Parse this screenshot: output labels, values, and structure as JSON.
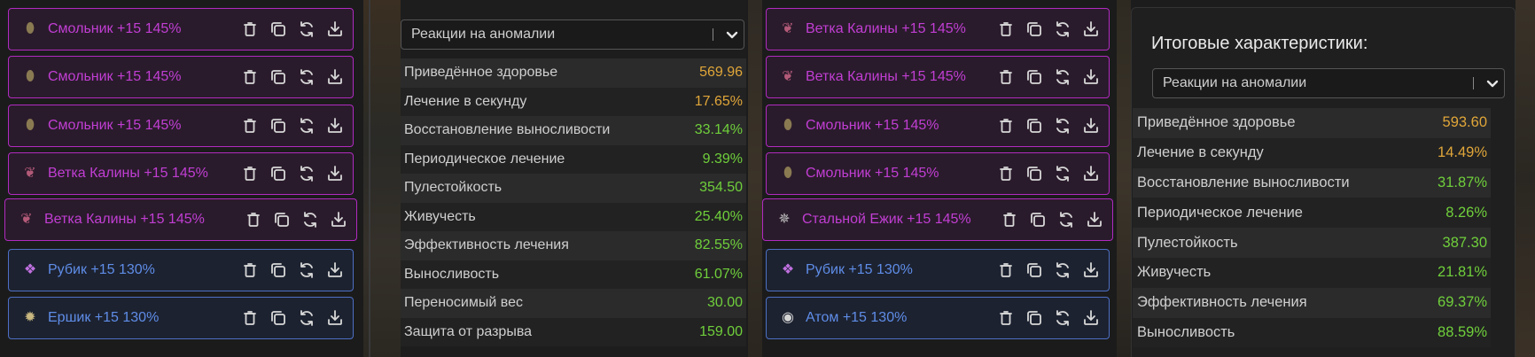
{
  "colors": {
    "legend_border": "#b12ac0",
    "legend_text": "#c13ed3",
    "epic_border": "#4d6fc4",
    "epic_text": "#5f8de8",
    "value_gold": "#e0a639",
    "value_green": "#6fcf3b"
  },
  "left_artifacts": [
    {
      "name": "Смольник +15 145%",
      "rarity": "legend",
      "icon": "resin-artifact-icon"
    },
    {
      "name": "Смольник +15 145%",
      "rarity": "legend",
      "icon": "resin-artifact-icon"
    },
    {
      "name": "Смольник +15 145%",
      "rarity": "legend",
      "icon": "resin-artifact-icon"
    },
    {
      "name": "Ветка Калины +15 145%",
      "rarity": "legend",
      "icon": "viburnum-branch-icon"
    },
    {
      "name": "Ветка Калины +15 145%",
      "rarity": "legend",
      "icon": "viburnum-branch-icon"
    },
    {
      "name": "Рубик +15 130%",
      "rarity": "epic",
      "icon": "cube-artifact-icon"
    },
    {
      "name": "Ершик +15 130%",
      "rarity": "epic",
      "icon": "urchin-artifact-icon"
    }
  ],
  "right_artifacts": [
    {
      "name": "Ветка Калины +15 145%",
      "rarity": "legend",
      "icon": "viburnum-branch-icon"
    },
    {
      "name": "Ветка Калины +15 145%",
      "rarity": "legend",
      "icon": "viburnum-branch-icon"
    },
    {
      "name": "Смольник +15 145%",
      "rarity": "legend",
      "icon": "resin-artifact-icon"
    },
    {
      "name": "Смольник +15 145%",
      "rarity": "legend",
      "icon": "resin-artifact-icon"
    },
    {
      "name": "Стальной Ежик +15 145%",
      "rarity": "legend",
      "icon": "steel-hedgehog-icon"
    },
    {
      "name": "Рубик +15 130%",
      "rarity": "epic",
      "icon": "cube-artifact-icon"
    },
    {
      "name": "Атом +15 130%",
      "rarity": "epic",
      "icon": "atom-artifact-icon"
    }
  ],
  "middle_panel": {
    "select_value": "Реакции на аномалии",
    "stats": [
      {
        "label": "Приведённое здоровье",
        "value": "569.96",
        "color": "gold"
      },
      {
        "label": "Лечение в секунду",
        "value": "17.65%",
        "color": "gold"
      },
      {
        "label": "Восстановление выносливости",
        "value": "33.14%",
        "color": "green"
      },
      {
        "label": "Периодическое лечение",
        "value": "9.39%",
        "color": "green"
      },
      {
        "label": "Пулестойкость",
        "value": "354.50",
        "color": "green"
      },
      {
        "label": "Живучесть",
        "value": "25.40%",
        "color": "green"
      },
      {
        "label": "Эффективность лечения",
        "value": "82.55%",
        "color": "green"
      },
      {
        "label": "Выносливость",
        "value": "61.07%",
        "color": "green"
      },
      {
        "label": "Переносимый вес",
        "value": "30.00",
        "color": "green"
      },
      {
        "label": "Защита от разрыва",
        "value": "159.00",
        "color": "green"
      }
    ]
  },
  "summary_panel": {
    "title": "Итоговые характеристики:",
    "select_value": "Реакции на аномалии",
    "stats": [
      {
        "label": "Приведённое здоровье",
        "value": "593.60",
        "color": "gold"
      },
      {
        "label": "Лечение в секунду",
        "value": "14.49%",
        "color": "gold"
      },
      {
        "label": "Восстановление выносливости",
        "value": "31.87%",
        "color": "green"
      },
      {
        "label": "Периодическое лечение",
        "value": "8.26%",
        "color": "green"
      },
      {
        "label": "Пулестойкость",
        "value": "387.30",
        "color": "green"
      },
      {
        "label": "Живучесть",
        "value": "21.81%",
        "color": "green"
      },
      {
        "label": "Эффективность лечения",
        "value": "69.37%",
        "color": "green"
      },
      {
        "label": "Выносливость",
        "value": "88.59%",
        "color": "green"
      }
    ]
  },
  "actions": [
    {
      "name": "delete-button",
      "icon": "trash-icon"
    },
    {
      "name": "copy-button",
      "icon": "copy-icon"
    },
    {
      "name": "replace-button",
      "icon": "refresh-icon"
    },
    {
      "name": "download-button",
      "icon": "download-icon"
    }
  ]
}
